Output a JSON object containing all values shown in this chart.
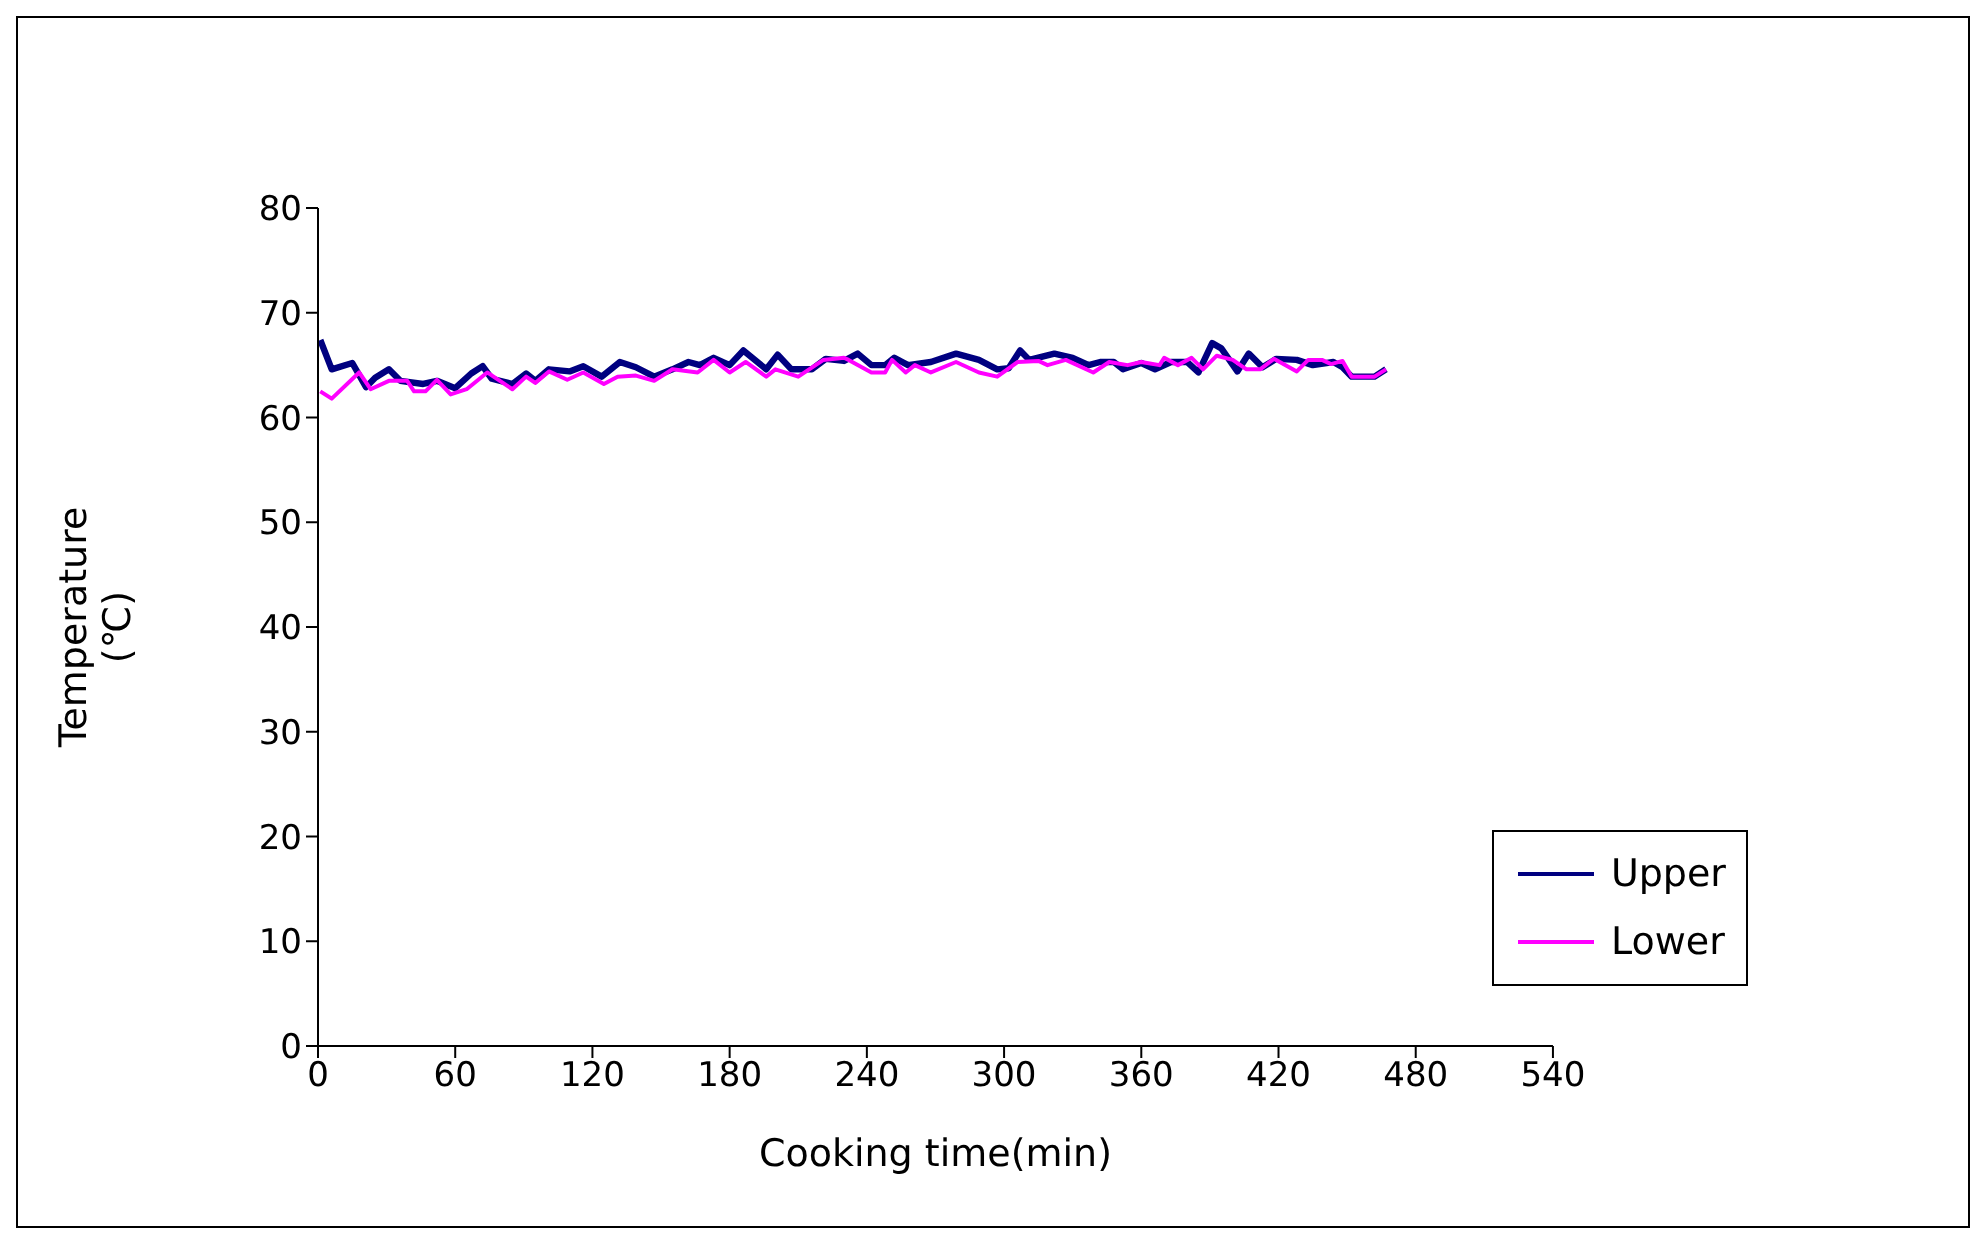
{
  "chart_data": {
    "type": "line",
    "xlabel": "Cooking time(min)",
    "ylabel": "Temperature (℃)",
    "xlim": [
      0,
      540
    ],
    "xticks": [
      0,
      60,
      120,
      180,
      240,
      300,
      360,
      420,
      480,
      540
    ],
    "ylim": [
      0,
      80
    ],
    "yticks": [
      0,
      10,
      20,
      30,
      40,
      50,
      60,
      70,
      80
    ],
    "grid": false,
    "legend": "bottom right",
    "marker": "none",
    "line_style": "solid",
    "series": [
      {
        "name": "Upper",
        "color": "#000080",
        "x": [
          1,
          6,
          15,
          21,
          25,
          31,
          36,
          46,
          52,
          60,
          67,
          72,
          76,
          85,
          91,
          95,
          101,
          110,
          116,
          124,
          132,
          139,
          147,
          155,
          162,
          167,
          173,
          180,
          186,
          196,
          201,
          207,
          216,
          222,
          230,
          236,
          242,
          248,
          252,
          258,
          268,
          279,
          289,
          297,
          302,
          307,
          311,
          322,
          330,
          337,
          342,
          348,
          352,
          360,
          366,
          373,
          380,
          385,
          391,
          395,
          402,
          407,
          413,
          419,
          428,
          435,
          444,
          448,
          452,
          462,
          467
        ],
        "values": [
          67.4,
          64.6,
          65.2,
          62.9,
          63.8,
          64.6,
          63.5,
          63.2,
          63.5,
          62.8,
          64.2,
          64.9,
          63.7,
          63.2,
          64.2,
          63.5,
          64.6,
          64.4,
          64.9,
          63.9,
          65.3,
          64.8,
          63.9,
          64.6,
          65.3,
          65,
          65.7,
          65,
          66.4,
          64.6,
          66,
          64.6,
          64.6,
          65.6,
          65.4,
          66.1,
          65,
          65,
          65.7,
          65,
          65.3,
          66.1,
          65.5,
          64.6,
          64.7,
          66.4,
          65.5,
          66.1,
          65.7,
          65,
          65.3,
          65.3,
          64.6,
          65.2,
          64.6,
          65.3,
          65.3,
          64.3,
          67.1,
          66.6,
          64.4,
          66.1,
          64.8,
          65.6,
          65.5,
          65,
          65.3,
          64.8,
          63.9,
          63.9,
          64.6
        ]
      },
      {
        "name": "Lower",
        "color": "#ff00ff",
        "x": [
          1,
          6,
          18,
          23,
          31,
          39,
          42,
          47,
          52,
          58,
          65,
          74,
          85,
          91,
          95,
          101,
          109,
          116,
          125,
          131,
          139,
          147,
          155,
          166,
          173,
          180,
          187,
          196,
          200,
          210,
          221,
          230,
          232,
          242,
          248,
          251,
          257,
          261,
          268,
          279,
          289,
          297,
          306,
          315,
          319,
          327,
          339,
          346,
          354,
          360,
          368,
          370,
          376,
          382,
          387,
          393,
          400,
          406,
          412,
          418,
          428,
          433,
          439,
          443,
          448,
          452,
          462,
          467
        ],
        "values": [
          62.5,
          61.8,
          64.3,
          62.7,
          63.5,
          63.5,
          62.5,
          62.5,
          63.6,
          62.2,
          62.7,
          64.3,
          62.7,
          63.9,
          63.3,
          64.4,
          63.6,
          64.3,
          63.2,
          63.9,
          64,
          63.5,
          64.6,
          64.3,
          65.5,
          64.3,
          65.3,
          63.9,
          64.6,
          63.9,
          65.5,
          65.7,
          65.5,
          64.3,
          64.3,
          65.5,
          64.3,
          65,
          64.3,
          65.3,
          64.3,
          63.9,
          65.3,
          65.4,
          65,
          65.5,
          64.3,
          65.3,
          65,
          65.3,
          65,
          65.7,
          65,
          65.7,
          64.6,
          65.9,
          65.5,
          64.6,
          64.6,
          65.6,
          64.4,
          65.5,
          65.5,
          65.1,
          65.4,
          63.9,
          63.9,
          64.6
        ]
      }
    ]
  }
}
